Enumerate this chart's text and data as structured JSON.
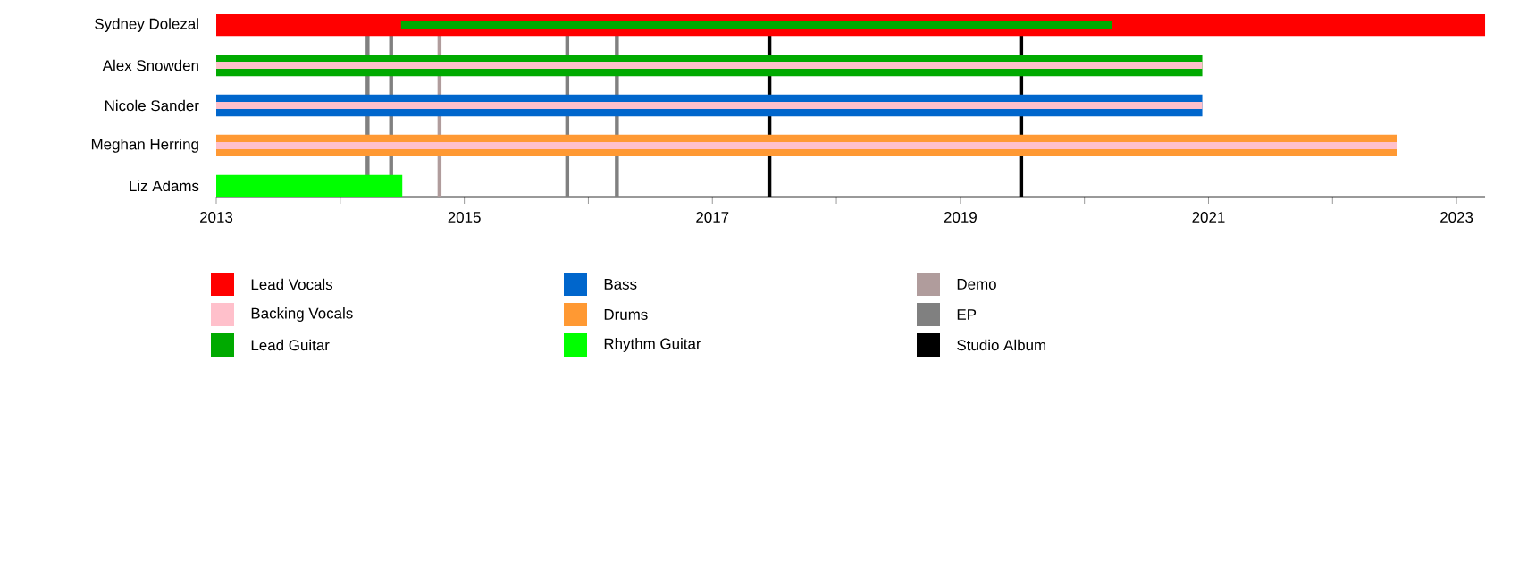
{
  "chart_data": {
    "type": "bar",
    "orientation": "horizontal",
    "categories": [
      "Sydney Dolezal",
      "Alex Snowden",
      "Nicole Sander",
      "Meghan Herring",
      "Liz Adams"
    ],
    "series": [
      {
        "name": "Lead Vocals",
        "color": "#ff0000",
        "base": [
          2013,
          null,
          null,
          null,
          null
        ],
        "values": [
          10.23,
          null,
          null,
          null,
          null
        ]
      },
      {
        "name": "Backing Vocals",
        "color": "#ffc0cb",
        "base": [
          null,
          2013,
          2013,
          2013,
          null
        ],
        "values": [
          null,
          7.95,
          7.95,
          9.52,
          null
        ]
      },
      {
        "name": "Lead Guitar",
        "color": "#00aa00",
        "base": [
          2014.49,
          2013,
          null,
          null,
          null
        ],
        "values": [
          5.73,
          7.95,
          null,
          null,
          null
        ]
      },
      {
        "name": "Bass",
        "color": "#0066cc",
        "base": [
          null,
          null,
          2013,
          null,
          null
        ],
        "values": [
          null,
          null,
          7.95,
          null,
          null
        ]
      },
      {
        "name": "Drums",
        "color": "#ff9933",
        "base": [
          null,
          null,
          null,
          2013,
          null
        ],
        "values": [
          null,
          null,
          null,
          9.52,
          null
        ]
      },
      {
        "name": "Rhythm Guitar",
        "color": "#00ff00",
        "base": [
          null,
          null,
          null,
          null,
          2013
        ],
        "values": [
          null,
          null,
          null,
          null,
          1.5
        ]
      }
    ],
    "ref_lines": [
      {
        "axis": "x",
        "value": 2014.22,
        "label": null,
        "color": "#808080"
      },
      {
        "axis": "x",
        "value": 2014.41,
        "label": null,
        "color": "#808080"
      },
      {
        "axis": "x",
        "value": 2014.8,
        "label": "Demo",
        "color": "#b09c9c"
      },
      {
        "axis": "x",
        "value": 2015.83,
        "label": "EP",
        "color": "#808080"
      },
      {
        "axis": "x",
        "value": 2016.23,
        "label": null,
        "color": "#808080"
      },
      {
        "axis": "x",
        "value": 2017.46,
        "label": "Studio Album",
        "color": "#000000"
      },
      {
        "axis": "x",
        "value": 2019.49,
        "label": null,
        "color": "#000000"
      }
    ],
    "legend": "bottom",
    "xlim": [
      2013,
      2023.23
    ],
    "xticks": [
      2013,
      {
        "value": 2014,
        "label": null
      },
      2015,
      {
        "value": 2016,
        "label": null
      },
      2017,
      {
        "value": 2018,
        "label": null
      },
      2019,
      {
        "value": 2020,
        "label": null
      },
      2021,
      {
        "value": 2022,
        "label": null
      },
      2023
    ]
  }
}
